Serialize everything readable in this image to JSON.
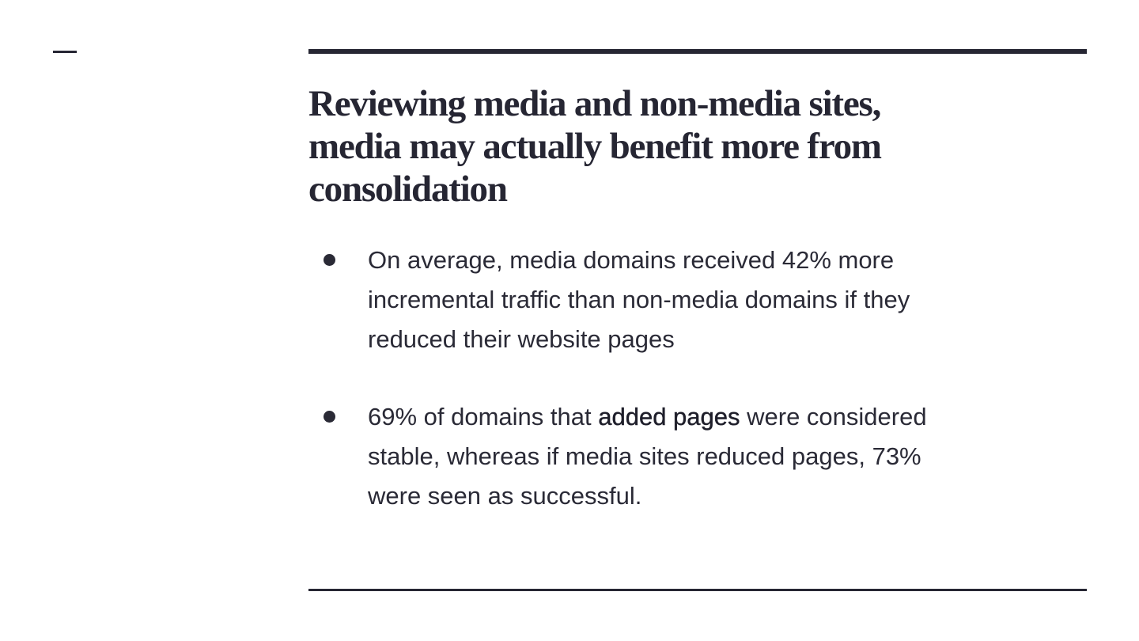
{
  "title": {
    "lines": [
      "Reviewing media and non-media sites,",
      "media may actually benefit more from",
      "consolidation"
    ]
  },
  "bullets": [
    {
      "lines": [
        "On average, media domains received 42% more",
        "incremental traffic than non-media domains if they",
        "reduced their website pages"
      ]
    },
    {
      "first_line": [
        "69% of domains that ",
        "added pages",
        " were considered"
      ],
      "lines": [
        "stable, whereas if media sites reduced pages, 73%",
        "were seen as successful."
      ]
    }
  ]
}
